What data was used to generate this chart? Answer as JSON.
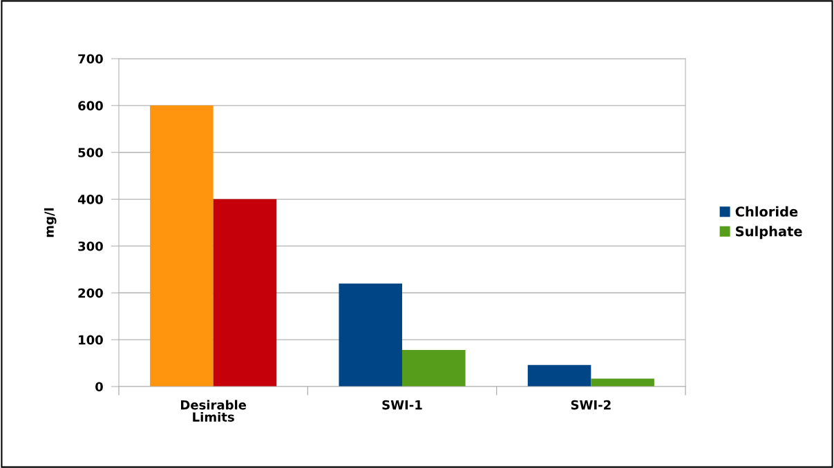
{
  "chart_data": {
    "type": "bar",
    "ylabel": "mg/l",
    "categories": [
      "Desirable\nLimits",
      "SWI-1",
      "SWI-2"
    ],
    "series": [
      {
        "name": "Chloride",
        "color": "#004586",
        "colors": [
          "#ff950e",
          "#004586",
          "#004586"
        ],
        "values": [
          600,
          220,
          46
        ]
      },
      {
        "name": "Sulphate",
        "color": "#579d1c",
        "colors": [
          "#c5000b",
          "#579d1c",
          "#579d1c"
        ],
        "values": [
          400,
          78,
          17
        ]
      }
    ],
    "ylim": [
      0,
      700
    ],
    "yticks": [
      0,
      100,
      200,
      300,
      400,
      500,
      600,
      700
    ],
    "grid": "y",
    "legend": "right"
  }
}
